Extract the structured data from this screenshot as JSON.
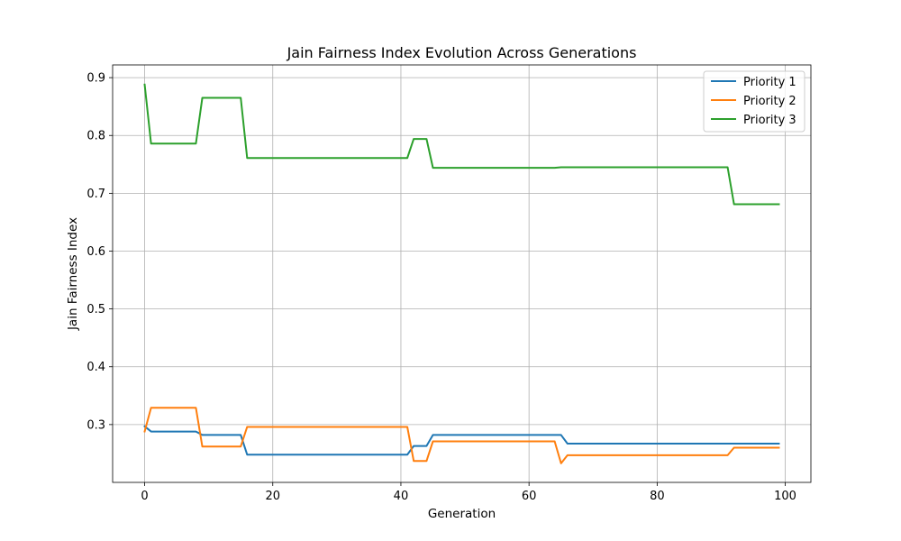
{
  "chart_data": {
    "type": "line",
    "title": "Jain Fairness Index Evolution Across Generations",
    "xlabel": "Generation",
    "ylabel": "Jain Fairness Index",
    "xlim": [
      -5,
      104
    ],
    "ylim": [
      0.2,
      0.922
    ],
    "xticks": [
      0,
      20,
      40,
      60,
      80,
      100
    ],
    "yticks": [
      0.3,
      0.4,
      0.5,
      0.6,
      0.7,
      0.8,
      0.9
    ],
    "ytick_labels": [
      "0.3",
      "0.4",
      "0.5",
      "0.6",
      "0.7",
      "0.8",
      "0.9"
    ],
    "grid": true,
    "legend_position": "top-right",
    "series": [
      {
        "name": "Priority 1",
        "color": "#1f77b4",
        "points": [
          [
            0,
            0.297
          ],
          [
            1,
            0.288
          ],
          [
            8,
            0.288
          ],
          [
            9,
            0.282
          ],
          [
            15,
            0.282
          ],
          [
            16,
            0.248
          ],
          [
            41,
            0.248
          ],
          [
            42,
            0.263
          ],
          [
            44,
            0.263
          ],
          [
            45,
            0.282
          ],
          [
            65,
            0.282
          ],
          [
            66,
            0.267
          ],
          [
            99,
            0.267
          ]
        ]
      },
      {
        "name": "Priority 2",
        "color": "#ff7f0e",
        "points": [
          [
            0,
            0.288
          ],
          [
            1,
            0.329
          ],
          [
            8,
            0.329
          ],
          [
            9,
            0.262
          ],
          [
            15,
            0.262
          ],
          [
            16,
            0.296
          ],
          [
            41,
            0.296
          ],
          [
            42,
            0.237
          ],
          [
            44,
            0.237
          ],
          [
            45,
            0.271
          ],
          [
            64,
            0.271
          ],
          [
            65,
            0.233
          ],
          [
            66,
            0.247
          ],
          [
            91,
            0.247
          ],
          [
            92,
            0.26
          ],
          [
            99,
            0.26
          ]
        ]
      },
      {
        "name": "Priority 3",
        "color": "#2ca02c",
        "points": [
          [
            0,
            0.888
          ],
          [
            1,
            0.786
          ],
          [
            8,
            0.786
          ],
          [
            9,
            0.865
          ],
          [
            15,
            0.865
          ],
          [
            16,
            0.761
          ],
          [
            41,
            0.761
          ],
          [
            42,
            0.794
          ],
          [
            44,
            0.794
          ],
          [
            45,
            0.744
          ],
          [
            64,
            0.744
          ],
          [
            65,
            0.745
          ],
          [
            91,
            0.745
          ],
          [
            92,
            0.681
          ],
          [
            99,
            0.681
          ]
        ]
      }
    ]
  }
}
